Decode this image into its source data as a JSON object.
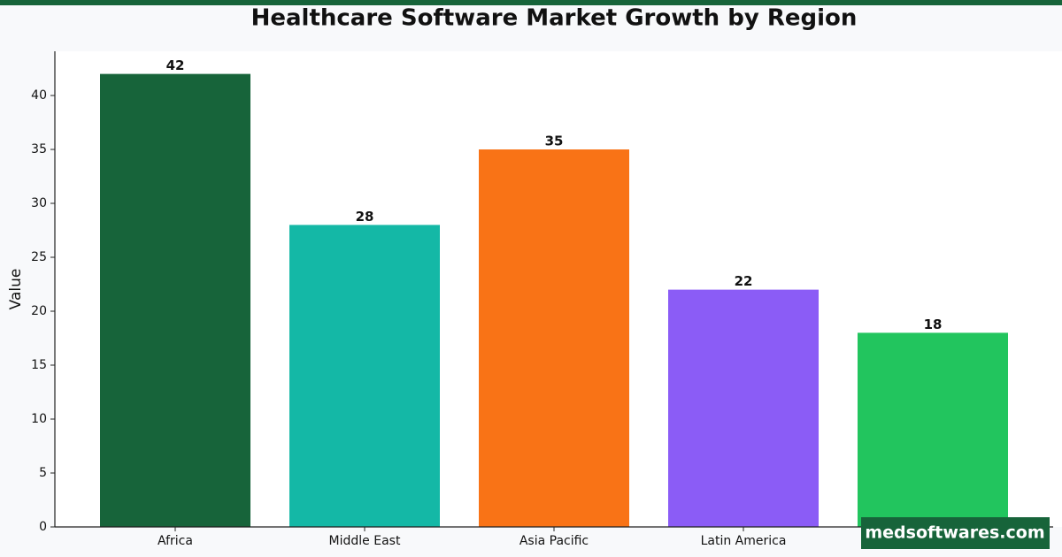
{
  "chart_data": {
    "type": "bar",
    "title": "Healthcare Software Market Growth by Region",
    "y_label": "Value",
    "categories": [
      "Africa",
      "Middle East",
      "Asia Pacific",
      "Latin America",
      null
    ],
    "values": [
      42,
      28,
      35,
      22,
      18
    ],
    "colors": [
      "#17643a",
      "#14b8a6",
      "#f97316",
      "#8b5cf6",
      "#22c55e"
    ],
    "ylim": [
      0,
      44.1
    ],
    "yticks": [
      0,
      5,
      10,
      15,
      20,
      25,
      30,
      35,
      40
    ],
    "grid": false
  },
  "watermark": "medsoftwares.com"
}
